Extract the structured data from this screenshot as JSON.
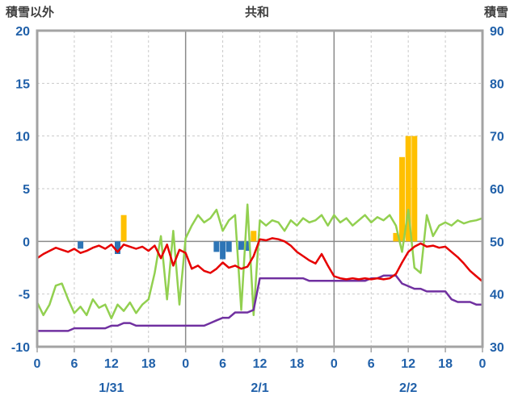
{
  "header": {
    "left_axis_title": "積雪以外",
    "chart_title": "共和",
    "right_axis_title": "積雪"
  },
  "chart_data": {
    "type": "combo-bar-line",
    "title": "共和",
    "left_axis": {
      "title": "積雪以外",
      "min": -10,
      "max": 20,
      "step": 5,
      "tick_values": [
        20,
        15,
        10,
        5,
        0,
        -5,
        -10
      ],
      "tick_labels": [
        "20",
        "15",
        "10",
        "5",
        "0",
        "-5",
        "-10"
      ]
    },
    "right_axis": {
      "title": "積雪",
      "min": 30,
      "max": 90,
      "step": 10,
      "tick_values": [
        90,
        80,
        70,
        60,
        50,
        40,
        30
      ],
      "tick_labels": [
        "90",
        "80",
        "70",
        "60",
        "50",
        "40",
        "30"
      ]
    },
    "x_axis": {
      "min": 0,
      "max": 72,
      "tick_positions": [
        0,
        6,
        12,
        18,
        24,
        30,
        36,
        42,
        48,
        54,
        60,
        66,
        72
      ],
      "tick_labels": [
        "0",
        "6",
        "12",
        "18",
        "0",
        "6",
        "12",
        "18",
        "0",
        "6",
        "12",
        "18",
        "0"
      ],
      "day_boundaries": [
        24,
        48
      ],
      "day_labels": [
        {
          "label": "1/31",
          "x": 12
        },
        {
          "label": "2/1",
          "x": 36
        },
        {
          "label": "2/2",
          "x": 60
        }
      ]
    },
    "series": [
      {
        "name": "orange-bars",
        "type": "bar",
        "axis": "left",
        "color": "#ffc000",
        "points": [
          {
            "x": 14,
            "v": 2.5
          },
          {
            "x": 35,
            "v": 1.0
          },
          {
            "x": 58,
            "v": 0.8
          },
          {
            "x": 59,
            "v": 8.0
          },
          {
            "x": 60,
            "v": 10.0
          },
          {
            "x": 61,
            "v": 10.0
          }
        ]
      },
      {
        "name": "blue-bars",
        "type": "bar",
        "axis": "left",
        "color": "#2e75b6",
        "points": [
          {
            "x": 7,
            "v": -0.7
          },
          {
            "x": 13,
            "v": -1.2
          },
          {
            "x": 29,
            "v": -1.0
          },
          {
            "x": 30,
            "v": -1.7
          },
          {
            "x": 31,
            "v": -1.0
          },
          {
            "x": 33,
            "v": -0.8
          },
          {
            "x": 34,
            "v": -0.9
          }
        ]
      },
      {
        "name": "green-line",
        "type": "line",
        "axis": "left",
        "color": "#92d050",
        "values": [
          -5.8,
          -7.0,
          -6.0,
          -4.2,
          -4.0,
          -5.5,
          -6.8,
          -6.2,
          -7.0,
          -5.5,
          -6.3,
          -6.0,
          -7.3,
          -6.0,
          -6.6,
          -5.8,
          -6.8,
          -6.0,
          -5.5,
          -3.0,
          0.5,
          -5.5,
          1.0,
          -6.0,
          0.3,
          1.5,
          2.5,
          1.8,
          2.2,
          3.0,
          1.0,
          2.0,
          2.5,
          -6.5,
          3.5,
          -7.0,
          2.0,
          1.5,
          2.0,
          1.8,
          1.0,
          2.0,
          1.5,
          2.2,
          1.8,
          2.0,
          2.5,
          1.5,
          2.5,
          1.8,
          2.2,
          1.5,
          2.0,
          2.5,
          1.8,
          2.3,
          2.0,
          2.5,
          1.5,
          -1.0,
          3.0,
          -2.5,
          -3.0,
          2.5,
          0.5,
          1.5,
          1.8,
          1.5,
          2.0,
          1.7,
          1.9,
          2.0,
          2.2
        ]
      },
      {
        "name": "purple-line",
        "type": "line",
        "axis": "right",
        "color": "#7030a0",
        "values": [
          33,
          33,
          33,
          33,
          33,
          33,
          33.5,
          33.5,
          33.5,
          33.5,
          33.5,
          33.5,
          34,
          34,
          34.5,
          34.5,
          34,
          34,
          34,
          34,
          34,
          34,
          34,
          34,
          34,
          34,
          34,
          34,
          34.5,
          35,
          35.5,
          35.5,
          36.5,
          36.5,
          36.5,
          37,
          43,
          43,
          43,
          43,
          43,
          43,
          43,
          43,
          42.5,
          42.5,
          42.5,
          42.5,
          42.5,
          42.5,
          42.5,
          42.5,
          42.5,
          42.5,
          43,
          43,
          43.5,
          43.5,
          43.5,
          42,
          41.5,
          41,
          41,
          40.5,
          40.5,
          40.5,
          40.5,
          39,
          38.5,
          38.5,
          38.5,
          38,
          38
        ]
      },
      {
        "name": "red-line",
        "type": "line",
        "axis": "left",
        "color": "#e60000",
        "values": [
          -1.6,
          -1.2,
          -0.9,
          -0.6,
          -0.8,
          -1.0,
          -0.7,
          -1.1,
          -0.9,
          -0.6,
          -0.4,
          -0.7,
          -0.3,
          -1.0,
          -0.3,
          -0.5,
          -0.7,
          -0.5,
          -0.9,
          -0.4,
          -1.6,
          -0.3,
          -2.3,
          -0.8,
          -1.1,
          -2.6,
          -2.3,
          -2.8,
          -3.0,
          -2.6,
          -2.0,
          -2.5,
          -2.3,
          -2.6,
          -2.4,
          -1.4,
          0.2,
          0.1,
          0.3,
          0.2,
          0.0,
          -0.4,
          -1.0,
          -1.4,
          -1.8,
          -2.1,
          -1.2,
          -2.3,
          -3.3,
          -3.5,
          -3.6,
          -3.5,
          -3.6,
          -3.5,
          -3.6,
          -3.5,
          -3.6,
          -3.5,
          -3.1,
          -2.0,
          -1.0,
          -0.5,
          -0.2,
          -0.5,
          -0.4,
          -0.6,
          -0.5,
          -1.0,
          -1.5,
          -2.1,
          -2.8,
          -3.3,
          -3.8
        ]
      }
    ],
    "colors": {
      "axis_text": "#2060a9",
      "title_text": "#3f3f3f",
      "grid": "#c9c9c9",
      "grid_major": "#8a8a8a",
      "frame": "#a3a3a3"
    }
  }
}
